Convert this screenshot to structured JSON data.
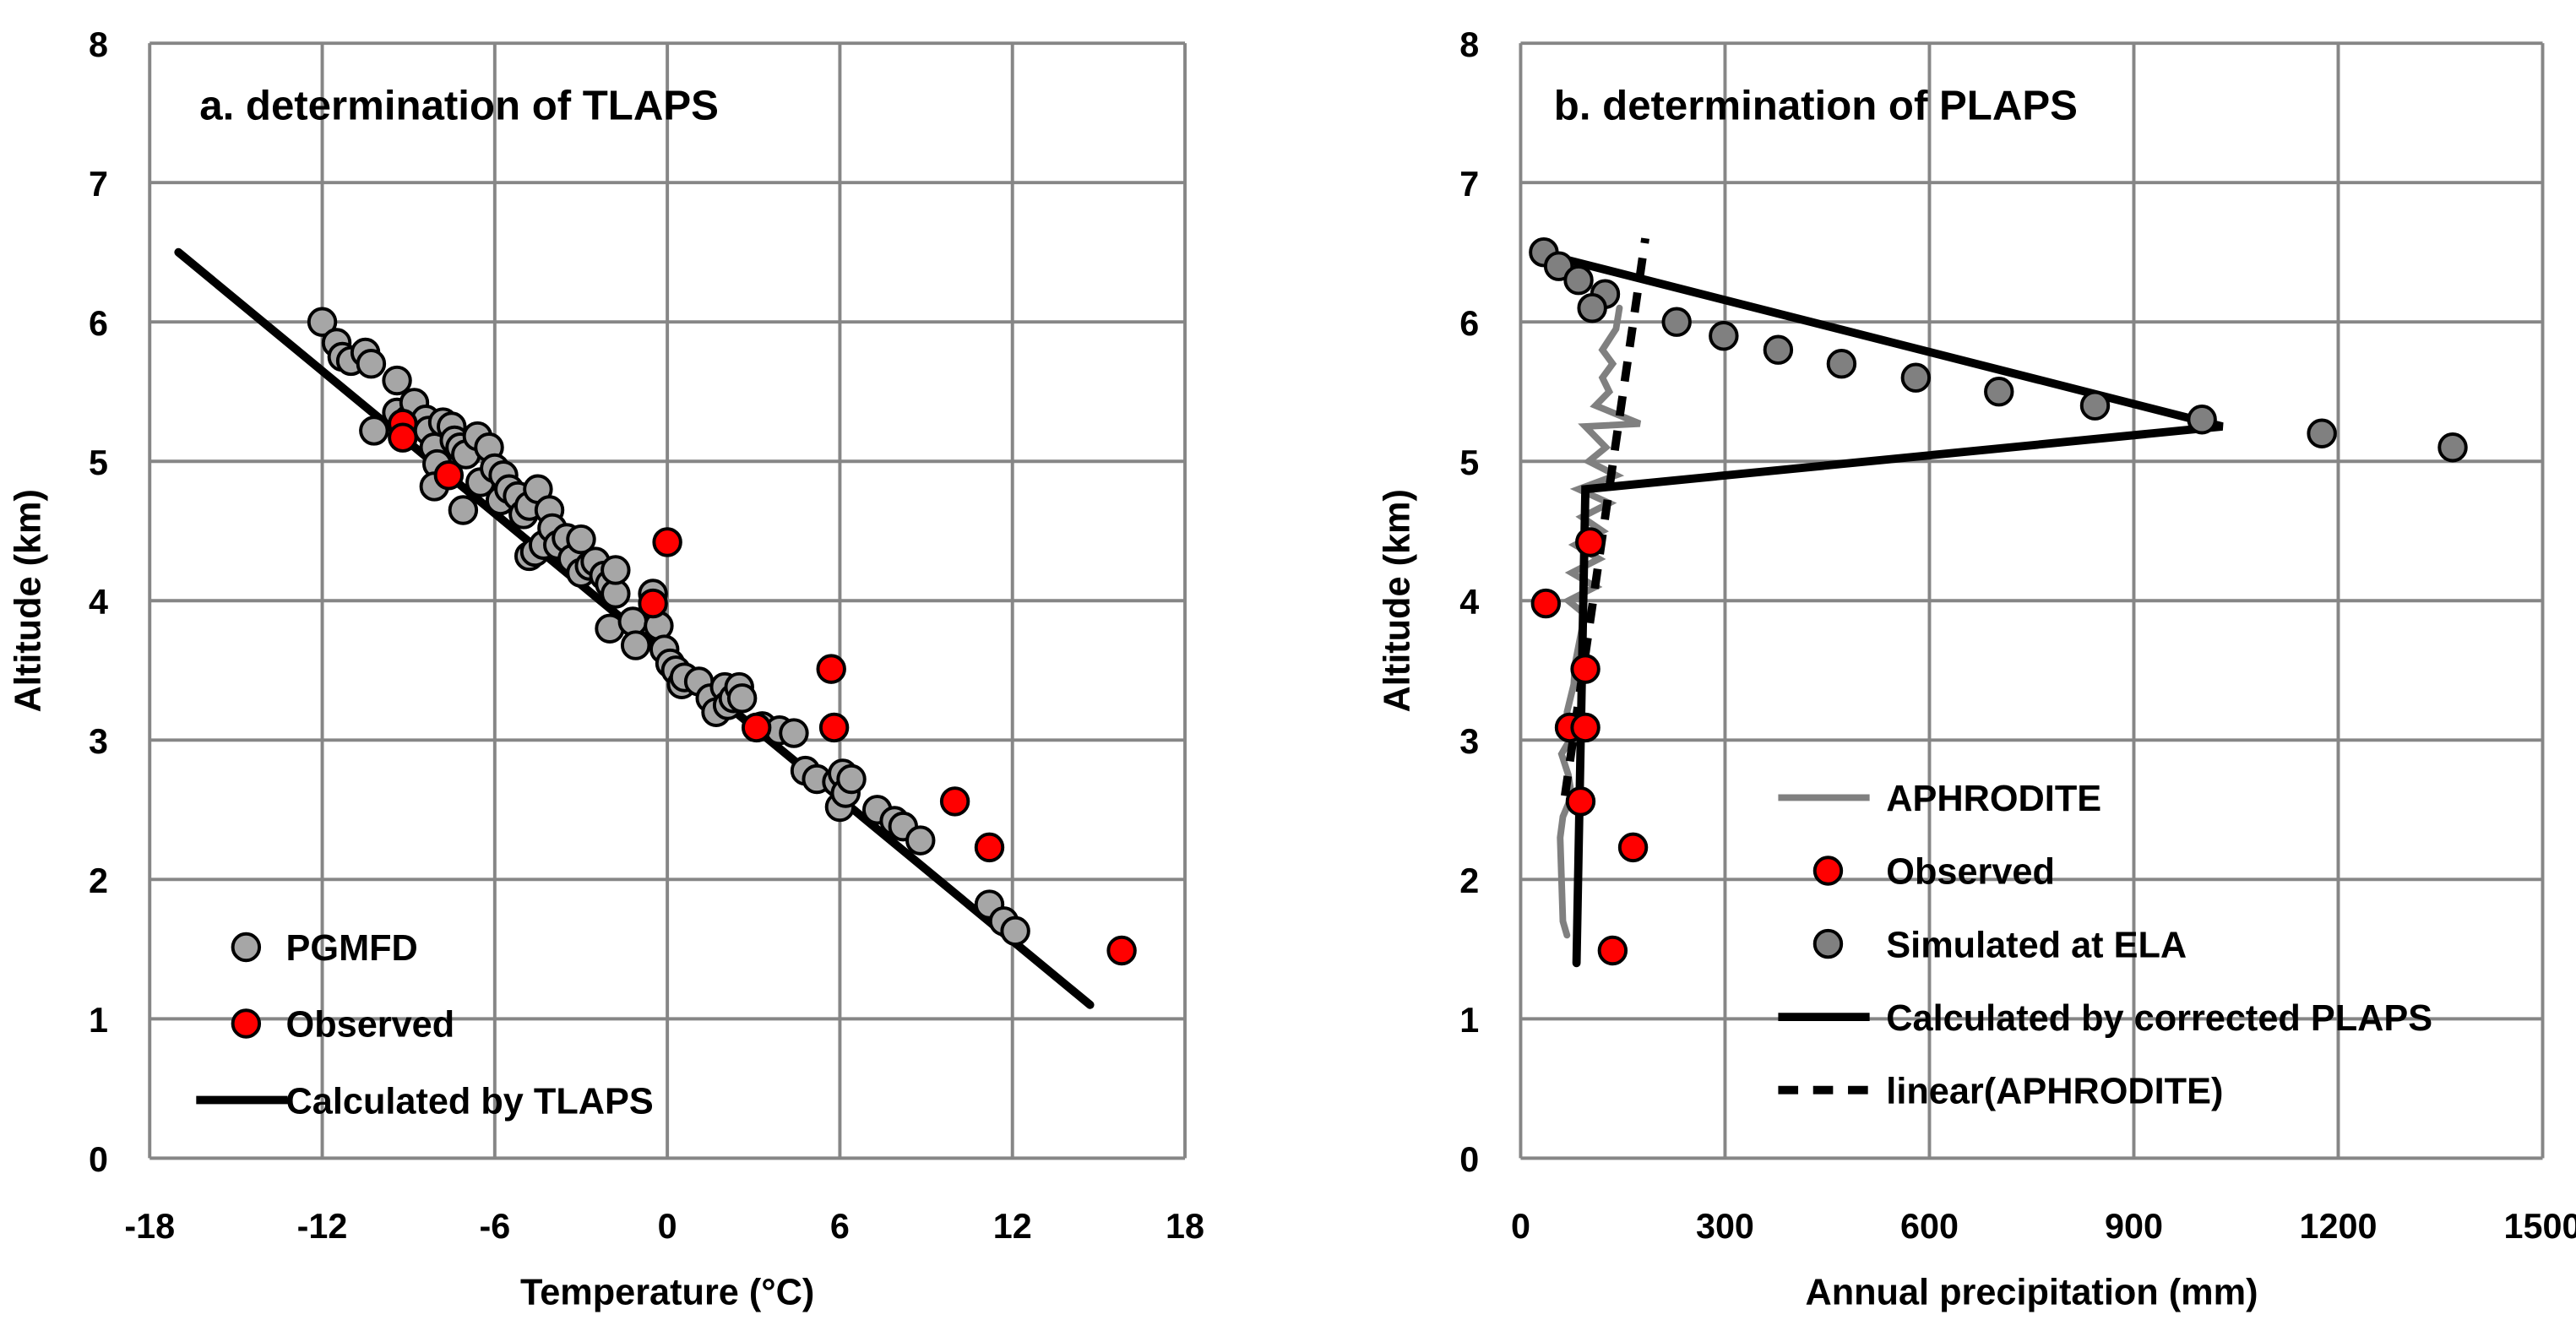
{
  "chart_data": [
    {
      "type": "scatter",
      "title": "a. determination of TLAPS",
      "xlabel": "Temperature (°C)",
      "ylabel": "Altitude (km)",
      "xlim": [
        -18,
        18
      ],
      "ylim": [
        0,
        8
      ],
      "xticks": [
        "-18",
        "-12",
        "-6",
        "0",
        "6",
        "12",
        "18"
      ],
      "yticks": [
        "0",
        "1",
        "2",
        "3",
        "4",
        "5",
        "6",
        "7",
        "8"
      ],
      "grid": true,
      "legend_position": "bottom-left",
      "series": [
        {
          "name": "PGMFD",
          "kind": "scatter",
          "color": "#a6a6a6",
          "points": [
            [
              -12,
              6.0
            ],
            [
              -11.5,
              5.85
            ],
            [
              -11.3,
              5.75
            ],
            [
              -11,
              5.72
            ],
            [
              -10.5,
              5.78
            ],
            [
              -10.3,
              5.7
            ],
            [
              -9.4,
              5.58
            ],
            [
              -9.4,
              5.35
            ],
            [
              -10.2,
              5.22
            ],
            [
              -9,
              5.3
            ],
            [
              -8.8,
              5.42
            ],
            [
              -8.4,
              5.3
            ],
            [
              -8.3,
              5.22
            ],
            [
              -8.1,
              5.1
            ],
            [
              -8,
              4.98
            ],
            [
              -8.1,
              4.82
            ],
            [
              -7.8,
              5.28
            ],
            [
              -7.5,
              5.25
            ],
            [
              -7.4,
              5.15
            ],
            [
              -7.2,
              5.1
            ],
            [
              -7,
              5.05
            ],
            [
              -7.1,
              4.65
            ],
            [
              -6.6,
              5.18
            ],
            [
              -6.5,
              4.85
            ],
            [
              -6.2,
              5.1
            ],
            [
              -6,
              4.95
            ],
            [
              -5.8,
              4.72
            ],
            [
              -5.7,
              4.9
            ],
            [
              -5.5,
              4.8
            ],
            [
              -5.2,
              4.75
            ],
            [
              -5,
              4.62
            ],
            [
              -4.8,
              4.68
            ],
            [
              -4.8,
              4.32
            ],
            [
              -4.6,
              4.35
            ],
            [
              -4.5,
              4.8
            ],
            [
              -4.3,
              4.4
            ],
            [
              -4.1,
              4.65
            ],
            [
              -4,
              4.52
            ],
            [
              -3.8,
              4.4
            ],
            [
              -3.5,
              4.45
            ],
            [
              -3.3,
              4.3
            ],
            [
              -3,
              4.2
            ],
            [
              -3,
              4.44
            ],
            [
              -2.7,
              4.25
            ],
            [
              -2.5,
              4.28
            ],
            [
              -2.2,
              4.18
            ],
            [
              -2,
              4.12
            ],
            [
              -1.8,
              4.05
            ],
            [
              -2,
              3.8
            ],
            [
              -1.8,
              4.22
            ],
            [
              -1.2,
              3.85
            ],
            [
              -1.1,
              3.68
            ],
            [
              -0.5,
              4.05
            ],
            [
              -0.3,
              3.82
            ],
            [
              -0.1,
              3.65
            ],
            [
              0.1,
              3.55
            ],
            [
              0.3,
              3.5
            ],
            [
              0.5,
              3.4
            ],
            [
              0.6,
              3.45
            ],
            [
              1.1,
              3.42
            ],
            [
              1.5,
              3.3
            ],
            [
              1.7,
              3.2
            ],
            [
              2.0,
              3.38
            ],
            [
              2.1,
              3.25
            ],
            [
              2.3,
              3.3
            ],
            [
              2.5,
              3.38
            ],
            [
              2.6,
              3.3
            ],
            [
              3.3,
              3.1
            ],
            [
              3.9,
              3.07
            ],
            [
              4.4,
              3.05
            ],
            [
              4.8,
              2.78
            ],
            [
              5.2,
              2.72
            ],
            [
              5.9,
              2.7
            ],
            [
              6.0,
              2.52
            ],
            [
              6.1,
              2.76
            ],
            [
              6.2,
              2.62
            ],
            [
              6.4,
              2.72
            ],
            [
              7.3,
              2.5
            ],
            [
              7.9,
              2.42
            ],
            [
              8.2,
              2.38
            ],
            [
              8.8,
              2.28
            ],
            [
              11.2,
              1.82
            ],
            [
              11.7,
              1.7
            ],
            [
              12.1,
              1.63
            ]
          ]
        },
        {
          "name": "Observed",
          "kind": "scatter",
          "color": "#ff0000",
          "points": [
            [
              -9.2,
              5.27
            ],
            [
              -9.2,
              5.17
            ],
            [
              -7.6,
              4.9
            ],
            [
              0,
              4.42
            ],
            [
              -0.5,
              3.98
            ],
            [
              3.1,
              3.09
            ],
            [
              5.7,
              3.51
            ],
            [
              5.8,
              3.09
            ],
            [
              10.0,
              2.56
            ],
            [
              11.2,
              2.23
            ],
            [
              15.8,
              1.49
            ]
          ]
        },
        {
          "name": "Calculated by TLAPS",
          "kind": "line",
          "color": "#000000",
          "points": [
            [
              -17,
              6.5
            ],
            [
              14.7,
              1.1
            ]
          ]
        }
      ]
    },
    {
      "type": "scatter",
      "title": "b. determination of PLAPS",
      "xlabel": "Annual precipitation (mm)",
      "ylabel": "Altitude (km)",
      "xlim": [
        0,
        1500
      ],
      "ylim": [
        0,
        8
      ],
      "xticks": [
        "0",
        "300",
        "600",
        "900",
        "1200",
        "1500"
      ],
      "yticks": [
        "0",
        "1",
        "2",
        "3",
        "4",
        "5",
        "6",
        "7",
        "8"
      ],
      "grid": true,
      "legend_position": "bottom-center",
      "series": [
        {
          "name": "APHRODITE",
          "kind": "line",
          "color": "#808080",
          "points": [
            [
              68,
              1.6
            ],
            [
              62,
              1.7
            ],
            [
              60,
              2.0
            ],
            [
              58,
              2.3
            ],
            [
              62,
              2.45
            ],
            [
              75,
              2.6
            ],
            [
              70,
              2.75
            ],
            [
              60,
              2.9
            ],
            [
              72,
              3.0
            ],
            [
              68,
              3.2
            ],
            [
              78,
              3.4
            ],
            [
              80,
              3.55
            ],
            [
              90,
              3.8
            ],
            [
              95,
              3.9
            ],
            [
              70,
              4.0
            ],
            [
              110,
              4.1
            ],
            [
              75,
              4.2
            ],
            [
              115,
              4.3
            ],
            [
              80,
              4.4
            ],
            [
              120,
              4.5
            ],
            [
              90,
              4.6
            ],
            [
              130,
              4.7
            ],
            [
              85,
              4.8
            ],
            [
              140,
              4.9
            ],
            [
              100,
              5.0
            ],
            [
              125,
              5.1
            ],
            [
              95,
              5.25
            ],
            [
              175,
              5.27
            ],
            [
              110,
              5.4
            ],
            [
              130,
              5.5
            ],
            [
              120,
              5.6
            ],
            [
              135,
              5.7
            ],
            [
              120,
              5.8
            ],
            [
              140,
              5.95
            ],
            [
              145,
              6.1
            ]
          ]
        },
        {
          "name": "Observed",
          "kind": "scatter",
          "color": "#ff0000",
          "points": [
            [
              102,
              4.42
            ],
            [
              37,
              3.98
            ],
            [
              95,
              3.51
            ],
            [
              72,
              3.09
            ],
            [
              95,
              3.09
            ],
            [
              88,
              2.56
            ],
            [
              165,
              2.23
            ],
            [
              135,
              1.49
            ]
          ]
        },
        {
          "name": "Simulated at ELA",
          "kind": "scatter",
          "color": "#808080",
          "points": [
            [
              34,
              6.5
            ],
            [
              56,
              6.4
            ],
            [
              85,
              6.3
            ],
            [
              124,
              6.2
            ],
            [
              105,
              6.1
            ],
            [
              229,
              6.0
            ],
            [
              298,
              5.9
            ],
            [
              378,
              5.8
            ],
            [
              471,
              5.7
            ],
            [
              580,
              5.6
            ],
            [
              702,
              5.5
            ],
            [
              843,
              5.4
            ],
            [
              1000,
              5.3
            ],
            [
              1176,
              5.2
            ],
            [
              1368,
              5.1
            ]
          ]
        },
        {
          "name": "Calculated by corrected PLAPS",
          "kind": "line",
          "color": "#000000",
          "points": [
            [
              40,
              6.48
            ],
            [
              1030,
              5.25
            ],
            [
              95,
              4.8
            ],
            [
              82,
              1.4
            ]
          ]
        },
        {
          "name": "linear(APHRODITE)",
          "kind": "dashed",
          "color": "#000000",
          "points": [
            [
              65,
              2.6
            ],
            [
              183,
              6.6
            ]
          ]
        }
      ]
    }
  ]
}
